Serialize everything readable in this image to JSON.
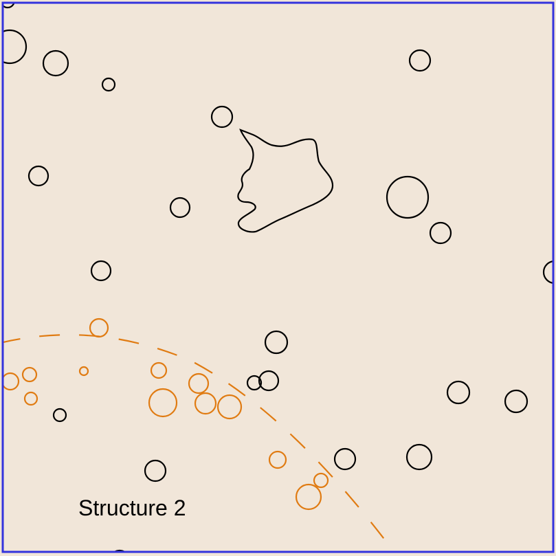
{
  "map": {
    "colors": {
      "background": "#f1e6d9",
      "frame": "#3333dd",
      "feature_stroke": "#000000",
      "structure_stroke": "#e07b12"
    },
    "structure_label": "Structure 2"
  }
}
